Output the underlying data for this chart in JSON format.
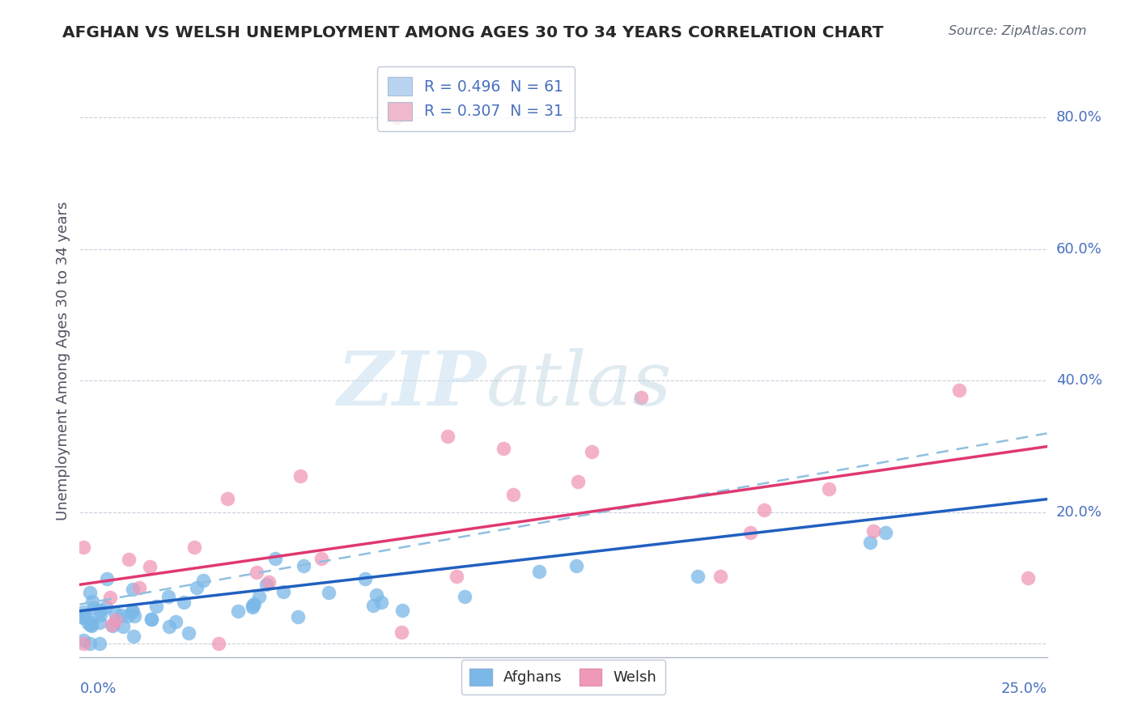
{
  "title": "AFGHAN VS WELSH UNEMPLOYMENT AMONG AGES 30 TO 34 YEARS CORRELATION CHART",
  "source": "Source: ZipAtlas.com",
  "ylabel": "Unemployment Among Ages 30 to 34 years",
  "legend_entries": [
    {
      "label_r": "R = 0.496",
      "label_n": "N = 61",
      "color": "#b8d4f0"
    },
    {
      "label_r": "R = 0.307",
      "label_n": "N = 31",
      "color": "#f0b8cc"
    }
  ],
  "x_min": 0.0,
  "x_max": 0.25,
  "y_min": -0.02,
  "y_max": 0.88,
  "yticks": [
    0.0,
    0.2,
    0.4,
    0.6,
    0.8
  ],
  "ytick_labels": [
    "",
    "20.0%",
    "40.0%",
    "60.0%",
    "80.0%"
  ],
  "afghan_color": "#7ab8e8",
  "welsh_color": "#f098b8",
  "afghan_line_color": "#2060c0",
  "welsh_line_color": "#e03870",
  "dashed_line_color": "#90c0e0",
  "afghan_seed": 42,
  "welsh_seed": 7,
  "N_afghan": 61,
  "N_welsh": 31
}
